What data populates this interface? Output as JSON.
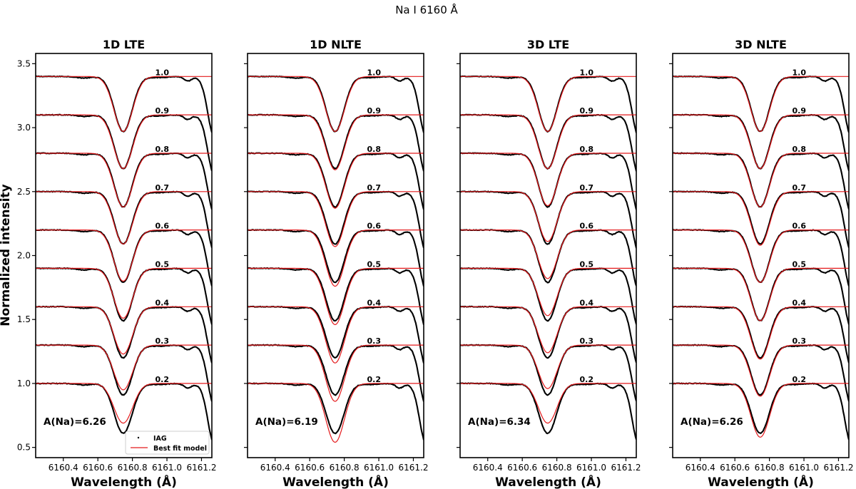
{
  "chart_data": {
    "type": "line",
    "title": "Na I 6160 Å",
    "ylabel": "Normalized intensity",
    "xlabel": "Wavelength (Å)",
    "xlim": [
      6160.24,
      6161.26
    ],
    "ylim": [
      0.42,
      3.58
    ],
    "x_ticks": [
      6160.4,
      6160.6,
      6160.8,
      6161.0,
      6161.2
    ],
    "x_tick_labels": [
      "6160.4",
      "6160.6",
      "6160.8",
      "6161.0",
      "6161.2"
    ],
    "y_ticks": [
      0.5,
      1.0,
      1.5,
      2.0,
      2.5,
      3.0,
      3.5
    ],
    "y_tick_labels": [
      "0.5",
      "1.0",
      "1.5",
      "2.0",
      "2.5",
      "3.0",
      "3.5"
    ],
    "line_center": 6160.747,
    "mu_values": [
      "1.0",
      "0.9",
      "0.8",
      "0.7",
      "0.6",
      "0.5",
      "0.4",
      "0.3",
      "0.2"
    ],
    "continuum_offsets": [
      3.4,
      3.1,
      2.8,
      2.5,
      2.2,
      1.9,
      1.6,
      1.3,
      1.0
    ],
    "observed_depths": [
      0.43,
      0.42,
      0.42,
      0.41,
      0.41,
      0.41,
      0.4,
      0.39,
      0.39
    ],
    "colors": {
      "observed": "#000000",
      "model": "#e41a1c"
    },
    "legend": {
      "position": "bottom-right",
      "entries": [
        "IAG",
        "Best fit model"
      ]
    },
    "panels": [
      {
        "title": "1D LTE",
        "abundance_label": "A(Na)=6.26",
        "model_depths": [
          0.43,
          0.42,
          0.42,
          0.41,
          0.4,
          0.39,
          0.37,
          0.35,
          0.31
        ]
      },
      {
        "title": "1D NLTE",
        "abundance_label": "A(Na)=6.19",
        "model_depths": [
          0.43,
          0.43,
          0.43,
          0.43,
          0.44,
          0.44,
          0.44,
          0.44,
          0.46
        ]
      },
      {
        "title": "3D LTE",
        "abundance_label": "A(Na)=6.34",
        "model_depths": [
          0.43,
          0.42,
          0.41,
          0.39,
          0.38,
          0.37,
          0.36,
          0.34,
          0.31
        ]
      },
      {
        "title": "3D NLTE",
        "abundance_label": "A(Na)=6.26",
        "model_depths": [
          0.43,
          0.42,
          0.42,
          0.42,
          0.41,
          0.41,
          0.41,
          0.4,
          0.42
        ]
      }
    ]
  }
}
